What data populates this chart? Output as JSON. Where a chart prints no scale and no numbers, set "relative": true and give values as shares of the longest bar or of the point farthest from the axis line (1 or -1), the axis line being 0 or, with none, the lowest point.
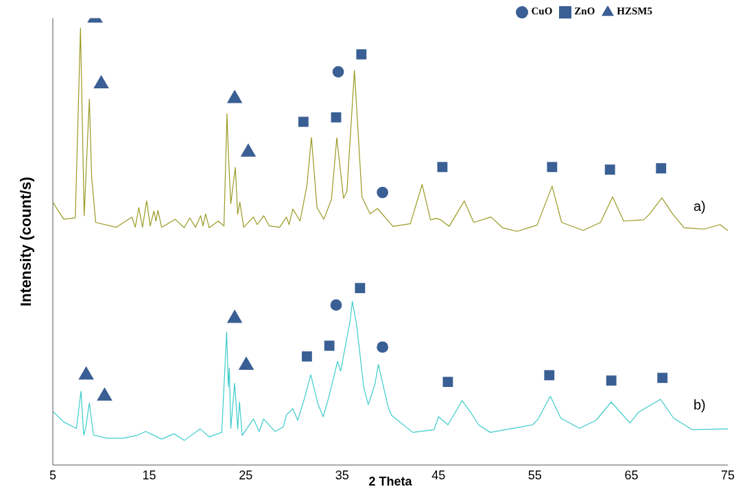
{
  "chart_data": {
    "type": "line",
    "xlabel": "2 Theta",
    "ylabel": "Intensity (count/s)",
    "relative": true,
    "tick_labels": "x",
    "legend": "top right",
    "xlim": [
      5,
      75
    ],
    "xticks": [
      5,
      15,
      25,
      35,
      45,
      55,
      65,
      75
    ],
    "series": [
      {
        "name": "a)",
        "marker": "none",
        "color": "#999922",
        "x": [
          5.0,
          6.13,
          7.33,
          7.87,
          8.25,
          8.79,
          9.03,
          9.45,
          11.57,
          13.2,
          13.55,
          13.92,
          14.3,
          14.73,
          15.1,
          15.48,
          15.7,
          15.9,
          16.28,
          17.69,
          18.63,
          19.2,
          19.8,
          20.33,
          20.57,
          20.85,
          21.22,
          22.16,
          22.75,
          23.06,
          23.22,
          23.46,
          23.69,
          23.93,
          24.17,
          24.4,
          24.8,
          25.81,
          26.2,
          26.87,
          27.45,
          28.52,
          29.23,
          29.5,
          29.89,
          30.64,
          31.35,
          31.82,
          32.4,
          33.11,
          33.9,
          34.45,
          35.15,
          35.5,
          36.28,
          37.06,
          37.9,
          38.67,
          40.28,
          42.08,
          43.3,
          44.17,
          44.78,
          45.2,
          46.1,
          47.67,
          48.65,
          50.44,
          51.64,
          53.13,
          55.22,
          56.78,
          57.77,
          60.0,
          61.8,
          63.05,
          64.2,
          66.28,
          66.9,
          68.16,
          69.28,
          70.47,
          72.56,
          74.2,
          75
        ],
        "values": [
          0.588,
          0.55,
          0.553,
          0.978,
          0.558,
          0.819,
          0.643,
          0.543,
          0.532,
          0.555,
          0.532,
          0.576,
          0.532,
          0.591,
          0.535,
          0.568,
          0.546,
          0.57,
          0.532,
          0.55,
          0.531,
          0.553,
          0.532,
          0.558,
          0.535,
          0.562,
          0.531,
          0.546,
          0.535,
          0.786,
          0.69,
          0.585,
          0.625,
          0.666,
          0.561,
          0.588,
          0.532,
          0.555,
          0.538,
          0.558,
          0.535,
          0.532,
          0.555,
          0.538,
          0.573,
          0.546,
          0.625,
          0.733,
          0.576,
          0.55,
          0.595,
          0.732,
          0.597,
          0.613,
          0.883,
          0.6,
          0.562,
          0.574,
          0.534,
          0.54,
          0.628,
          0.549,
          0.552,
          0.549,
          0.534,
          0.591,
          0.543,
          0.555,
          0.531,
          0.523,
          0.537,
          0.624,
          0.543,
          0.525,
          0.543,
          0.6,
          0.546,
          0.549,
          0.562,
          0.598,
          0.562,
          0.531,
          0.528,
          0.538,
          0.525
        ]
      },
      {
        "name": "b)",
        "marker": "none",
        "color": "#3ccbcb",
        "x": [
          5.0,
          6.15,
          7.45,
          7.92,
          8.2,
          8.4,
          8.79,
          9.21,
          10.63,
          12.28,
          13.7,
          14.63,
          16.28,
          17.57,
          18.63,
          20.28,
          21.22,
          22.52,
          23.03,
          23.2,
          23.3,
          23.46,
          23.86,
          24.18,
          24.36,
          24.64,
          25.81,
          26.4,
          26.87,
          28.05,
          28.9,
          29.23,
          29.89,
          30.4,
          31.11,
          31.75,
          32.52,
          33.04,
          33.6,
          34.53,
          34.85,
          35.82,
          36.06,
          36.5,
          37.24,
          37.71,
          38.4,
          38.76,
          39.77,
          40.14,
          42.33,
          44.53,
          45.01,
          45.98,
          47.45,
          48.42,
          49.15,
          50.37,
          54.76,
          55.3,
          56.6,
          57.68,
          59.62,
          61.33,
          62.91,
          64.86,
          65.72,
          68.03,
          69.37,
          71.32,
          75
        ],
        "values": [
          0.12,
          0.096,
          0.082,
          0.165,
          0.067,
          0.081,
          0.139,
          0.067,
          0.06,
          0.06,
          0.066,
          0.075,
          0.058,
          0.07,
          0.055,
          0.081,
          0.063,
          0.073,
          0.298,
          0.175,
          0.217,
          0.082,
          0.183,
          0.081,
          0.141,
          0.066,
          0.103,
          0.075,
          0.103,
          0.075,
          0.085,
          0.112,
          0.126,
          0.1,
          0.15,
          0.202,
          0.135,
          0.108,
          0.15,
          0.232,
          0.21,
          0.321,
          0.366,
          0.315,
          0.175,
          0.135,
          0.18,
          0.225,
          0.13,
          0.111,
          0.073,
          0.079,
          0.108,
          0.09,
          0.144,
          0.115,
          0.09,
          0.073,
          0.09,
          0.102,
          0.154,
          0.105,
          0.082,
          0.1,
          0.141,
          0.094,
          0.118,
          0.147,
          0.105,
          0.079,
          0.081
        ]
      },
      {
        "name": "CuO",
        "type": "scatter",
        "marker": "circle",
        "color": "#3a5f94",
        "x": [
          34.6,
          39.19,
          34.38,
          39.19
        ],
        "values": [
          0.88,
          0.61,
          0.358,
          0.264
        ]
      },
      {
        "name": "ZnO",
        "type": "scatter",
        "marker": "square",
        "color": "#3a5f94",
        "x": [
          30.99,
          34.38,
          37.0,
          45.4,
          56.78,
          62.78,
          68.08,
          31.35,
          33.68,
          36.86,
          45.97,
          56.49,
          62.92,
          68.22
        ],
        "values": [
          0.768,
          0.778,
          0.919,
          0.667,
          0.667,
          0.661,
          0.664,
          0.243,
          0.267,
          0.396,
          0.186,
          0.201,
          0.189,
          0.195
        ]
      },
      {
        "name": "HZSM5",
        "type": "scatter",
        "marker": "triangle",
        "color": "#3a5f94",
        "x": [
          9.38,
          10.02,
          23.86,
          25.27,
          8.46,
          10.37,
          23.86,
          25.06
        ],
        "values": [
          1.0,
          0.853,
          0.82,
          0.7,
          0.201,
          0.154,
          0.328,
          0.223
        ]
      }
    ]
  }
}
